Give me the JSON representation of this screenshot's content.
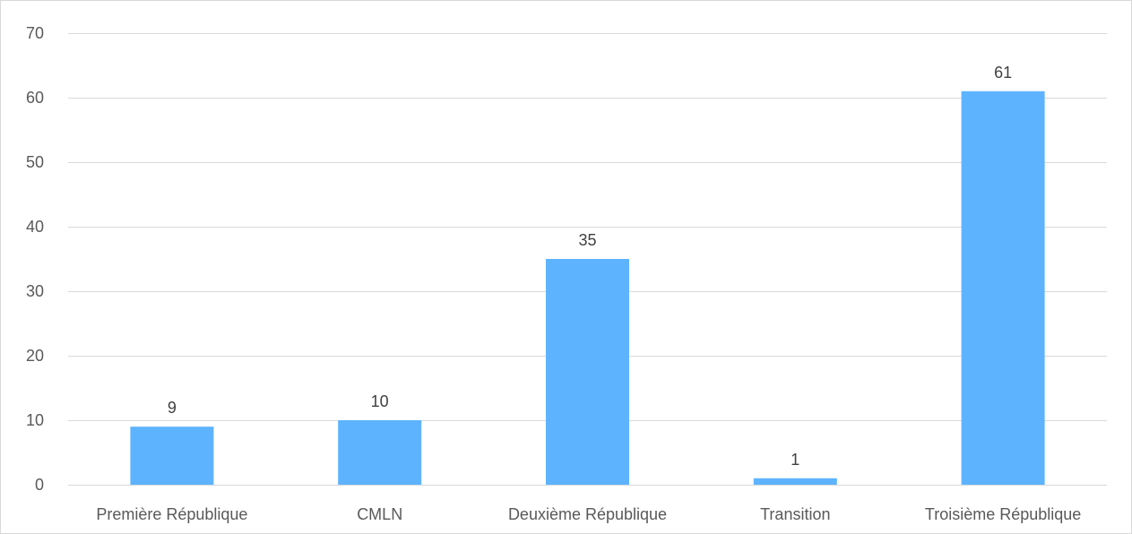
{
  "chart_data": {
    "type": "bar",
    "title": "",
    "xlabel": "",
    "ylabel": "",
    "categories": [
      "Première République",
      "CMLN",
      "Deuxième République",
      "Transition",
      "Troisième République"
    ],
    "values": [
      9,
      10,
      35,
      1,
      61
    ],
    "data_labels": [
      "9",
      "10",
      "35",
      "1",
      "61"
    ],
    "ylim": [
      0,
      70
    ],
    "y_ticks": [
      0,
      10,
      20,
      30,
      40,
      50,
      60,
      70
    ],
    "y_tick_labels": [
      "0",
      "10",
      "20",
      "30",
      "40",
      "50",
      "60",
      "70"
    ],
    "grid": true,
    "legend": "none",
    "bar_color": "#5eb3ff",
    "grid_color": "#d9d9d9",
    "label_color": "#595959"
  }
}
